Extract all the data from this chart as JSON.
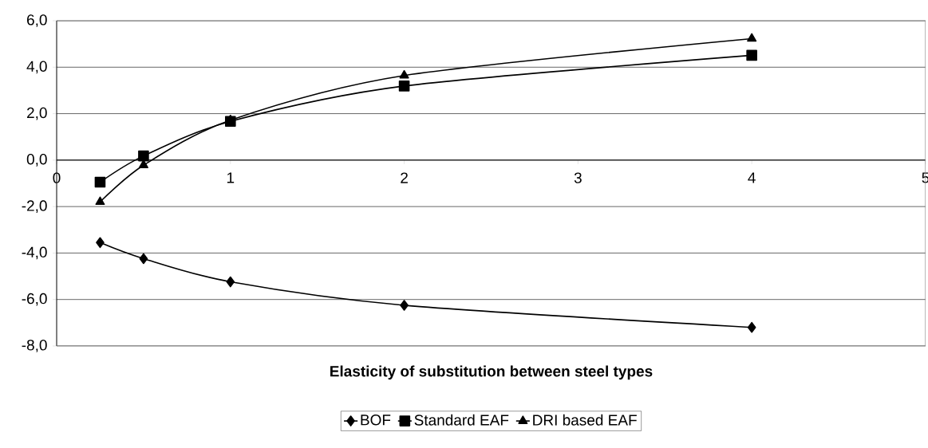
{
  "chart_data": {
    "type": "line",
    "xlabel": "Elasticity of substitution between steel types",
    "x": [
      0.25,
      0.5,
      1,
      2,
      4
    ],
    "xlim": [
      0,
      5
    ],
    "xticks": [
      0,
      1,
      2,
      3,
      4,
      5
    ],
    "ylim": [
      -8,
      6
    ],
    "yticks": [
      {
        "value": -8,
        "label": "-8,0"
      },
      {
        "value": -6,
        "label": "-6,0"
      },
      {
        "value": -4,
        "label": "-4,0"
      },
      {
        "value": -2,
        "label": "-2,0"
      },
      {
        "value": 0,
        "label": "0,0"
      },
      {
        "value": 2,
        "label": "2,0"
      },
      {
        "value": 4,
        "label": "4,0"
      },
      {
        "value": 6,
        "label": "6,0"
      }
    ],
    "grid": "y",
    "legend": "bottom",
    "line_style": "solid",
    "series": [
      {
        "name": "BOF",
        "color": "#000000",
        "marker": "diamond",
        "values": [
          -3.55,
          -4.24,
          -5.24,
          -6.25,
          -7.2
        ]
      },
      {
        "name": "Standard EAF",
        "color": "#000000",
        "marker": "square",
        "values": [
          -0.95,
          0.18,
          1.67,
          3.19,
          4.51
        ]
      },
      {
        "name": "DRI based EAF",
        "color": "#000000",
        "marker": "triangle",
        "values": [
          -1.8,
          -0.22,
          1.72,
          3.64,
          5.23
        ]
      }
    ]
  }
}
